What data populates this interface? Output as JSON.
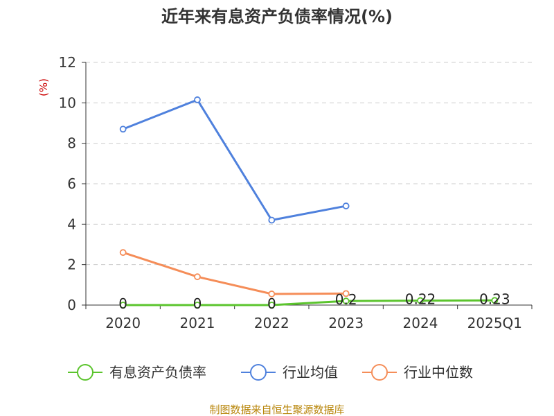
{
  "chart_data": {
    "type": "line",
    "title": "近年来有息资产负债率情况(%)",
    "ylabel": "(%)",
    "xlabel": "",
    "categories": [
      "2020",
      "2021",
      "2022",
      "2023",
      "2024",
      "2025Q1"
    ],
    "ylim": [
      0,
      12
    ],
    "yticks": [
      0,
      2,
      4,
      6,
      8,
      10,
      12
    ],
    "grid": true,
    "legend_position": "bottom",
    "series": [
      {
        "name": "有息资产负债率",
        "color": "#5bc42d",
        "values": [
          0,
          0,
          0,
          0.2,
          0.22,
          0.23
        ],
        "data_labels": [
          "0",
          "0",
          "0",
          "0.2",
          "0.22",
          "0.23"
        ]
      },
      {
        "name": "行业均值",
        "color": "#4f81dd",
        "values": [
          8.7,
          10.15,
          4.2,
          4.9,
          null,
          null
        ]
      },
      {
        "name": "行业中位数",
        "color": "#f58d58",
        "values": [
          2.6,
          1.4,
          0.55,
          0.57,
          null,
          null
        ]
      }
    ]
  },
  "colors": {
    "title": "#333333",
    "axis": "#333333",
    "grid": "#cccccc",
    "unit_label": "#cc0000",
    "source": "#b8860b"
  },
  "source": "制图数据来自恒生聚源数据库"
}
